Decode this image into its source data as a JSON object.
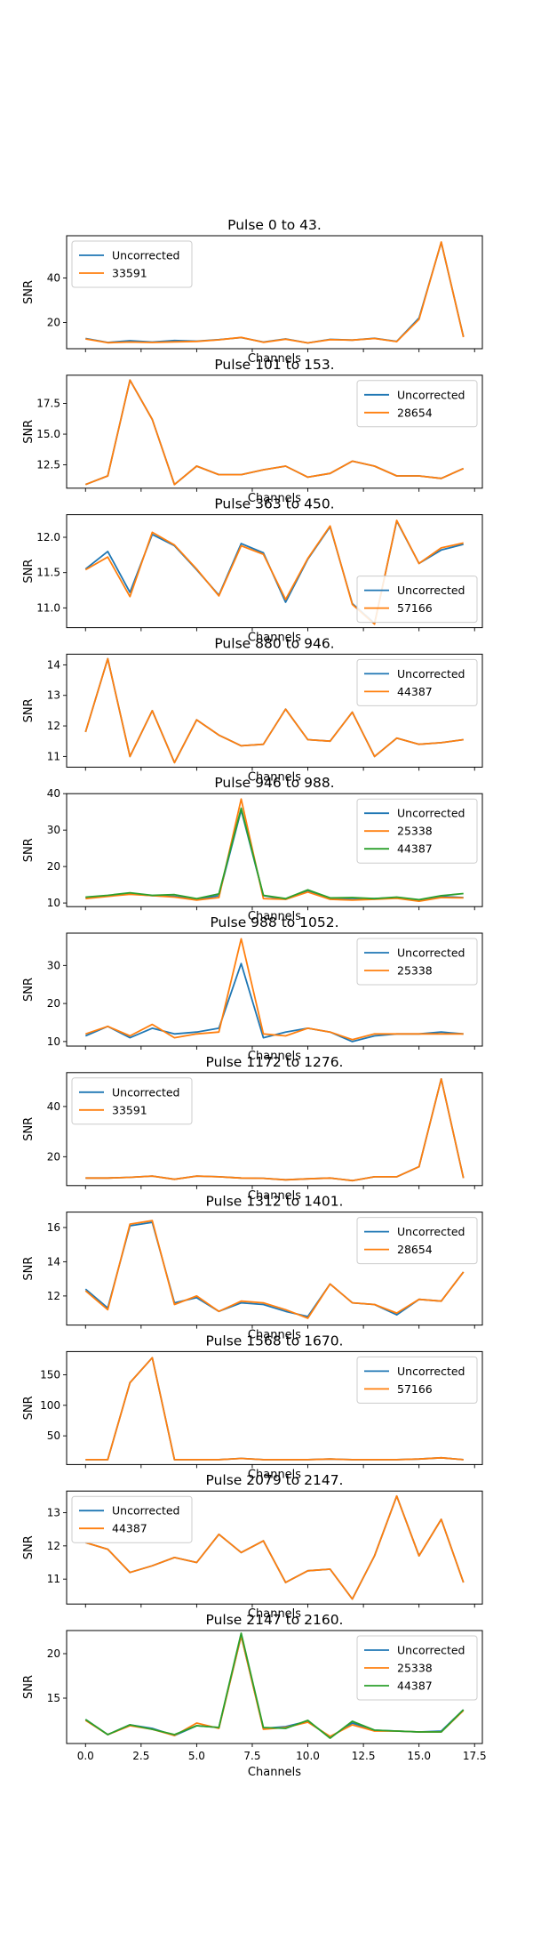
{
  "figure": {
    "name": "snr-per-channel-grid"
  },
  "colors": {
    "Uncorrected": "#1f77b4",
    "33591": "#ff7f0e",
    "28654": "#ff7f0e",
    "57166": "#ff7f0e",
    "44387": "#ff7f0e",
    "25338": "#ff7f0e",
    "44387_green": "#2ca02c"
  },
  "chart_data": [
    {
      "type": "line",
      "title": "Pulse 0 to 43.",
      "xlabel": "Channels",
      "ylabel": "SNR",
      "ylim": [
        8.2,
        59
      ],
      "yticks": [
        "20",
        "40"
      ],
      "yticks_values": [
        20,
        40
      ],
      "legend": "top-left",
      "x": [
        0,
        1,
        2,
        3,
        4,
        5,
        6,
        7,
        8,
        9,
        10,
        11,
        12,
        13,
        14,
        15,
        16,
        17
      ],
      "series": [
        {
          "name": "Uncorrected",
          "color": "#1f77b4",
          "values": [
            12.8,
            11.0,
            11.8,
            11.2,
            11.9,
            11.6,
            12.3,
            13.2,
            11.2,
            12.6,
            10.8,
            12.4,
            12.1,
            12.9,
            11.5,
            22.0,
            56.0,
            13.6
          ]
        },
        {
          "name": "33591",
          "color": "#ff7f0e",
          "values": [
            12.6,
            10.9,
            11.2,
            11.0,
            11.3,
            11.5,
            12.2,
            13.3,
            11.1,
            12.5,
            10.8,
            12.3,
            12.1,
            12.8,
            11.4,
            21.4,
            56.2,
            13.4
          ]
        }
      ]
    },
    {
      "type": "line",
      "title": "Pulse 101 to 153.",
      "xlabel": "Channels",
      "ylabel": "SNR",
      "ylim": [
        10.6,
        19.8
      ],
      "yticks": [
        "12.5",
        "15.0",
        "17.5"
      ],
      "yticks_values": [
        12.5,
        15.0,
        17.5
      ],
      "legend": "top-right",
      "x": [
        0,
        1,
        2,
        3,
        4,
        5,
        6,
        7,
        8,
        9,
        10,
        11,
        12,
        13,
        14,
        15,
        16,
        17
      ],
      "series": [
        {
          "name": "Uncorrected",
          "color": "#1f77b4",
          "values": [
            10.9,
            11.6,
            19.4,
            16.2,
            10.9,
            12.4,
            11.7,
            11.7,
            12.1,
            12.4,
            11.5,
            11.8,
            12.8,
            12.4,
            11.6,
            11.6,
            11.4,
            12.2
          ]
        },
        {
          "name": "28654",
          "color": "#ff7f0e",
          "values": [
            10.9,
            11.6,
            19.4,
            16.2,
            10.9,
            12.4,
            11.7,
            11.7,
            12.1,
            12.4,
            11.5,
            11.8,
            12.8,
            12.4,
            11.6,
            11.6,
            11.4,
            12.2
          ]
        }
      ]
    },
    {
      "type": "line",
      "title": "Pulse 363 to 450.",
      "xlabel": "Channels",
      "ylabel": "SNR",
      "ylim": [
        10.72,
        12.32
      ],
      "yticks": [
        "11.0",
        "11.5",
        "12.0"
      ],
      "yticks_values": [
        11.0,
        11.5,
        12.0
      ],
      "legend": "bottom-right",
      "x": [
        0,
        1,
        2,
        3,
        4,
        5,
        6,
        7,
        8,
        9,
        10,
        11,
        12,
        13,
        14,
        15,
        16,
        17
      ],
      "series": [
        {
          "name": "Uncorrected",
          "color": "#1f77b4",
          "values": [
            11.55,
            11.8,
            11.22,
            12.04,
            11.88,
            11.54,
            11.18,
            11.91,
            11.78,
            11.08,
            11.69,
            12.15,
            11.06,
            10.78,
            12.23,
            11.63,
            11.82,
            11.9
          ]
        },
        {
          "name": "57166",
          "color": "#ff7f0e",
          "values": [
            11.54,
            11.72,
            11.16,
            12.07,
            11.89,
            11.55,
            11.17,
            11.88,
            11.76,
            11.12,
            11.7,
            12.16,
            11.05,
            10.77,
            12.24,
            11.63,
            11.85,
            11.92
          ]
        }
      ]
    },
    {
      "type": "line",
      "title": "Pulse 880 to 946.",
      "xlabel": "Channels",
      "ylabel": "SNR",
      "ylim": [
        10.65,
        14.35
      ],
      "yticks": [
        "11",
        "12",
        "13",
        "14"
      ],
      "yticks_values": [
        11,
        12,
        13,
        14
      ],
      "legend": "top-right",
      "x": [
        0,
        1,
        2,
        3,
        4,
        5,
        6,
        7,
        8,
        9,
        10,
        11,
        12,
        13,
        14,
        15,
        16,
        17
      ],
      "series": [
        {
          "name": "Uncorrected",
          "color": "#1f77b4",
          "values": [
            11.8,
            14.2,
            11.0,
            12.5,
            10.8,
            12.2,
            11.7,
            11.35,
            11.4,
            12.55,
            11.55,
            11.5,
            12.45,
            11.0,
            11.6,
            11.4,
            11.45,
            11.55
          ]
        },
        {
          "name": "44387",
          "color": "#ff7f0e",
          "values": [
            11.8,
            14.2,
            11.0,
            12.5,
            10.8,
            12.2,
            11.7,
            11.35,
            11.4,
            12.55,
            11.55,
            11.5,
            12.45,
            11.0,
            11.6,
            11.4,
            11.45,
            11.55
          ]
        }
      ]
    },
    {
      "type": "line",
      "title": "Pulse 946 to 988.",
      "xlabel": "Channels",
      "ylabel": "SNR",
      "ylim": [
        9.0,
        40.0
      ],
      "yticks": [
        "10",
        "20",
        "30",
        "40"
      ],
      "yticks_values": [
        10,
        20,
        30,
        40
      ],
      "legend": "top-right",
      "x": [
        0,
        1,
        2,
        3,
        4,
        5,
        6,
        7,
        8,
        9,
        10,
        11,
        12,
        13,
        14,
        15,
        16,
        17
      ],
      "series": [
        {
          "name": "Uncorrected",
          "color": "#1f77b4",
          "values": [
            11.5,
            12.0,
            12.5,
            12.0,
            11.8,
            11.0,
            12.0,
            35.5,
            12.0,
            11.0,
            13.2,
            11.2,
            11.0,
            11.2,
            11.5,
            10.8,
            11.8,
            11.5
          ]
        },
        {
          "name": "25338",
          "color": "#ff7f0e",
          "values": [
            11.2,
            11.8,
            12.4,
            12.0,
            11.6,
            10.8,
            11.5,
            38.5,
            11.2,
            11.0,
            13.0,
            11.0,
            10.8,
            11.0,
            11.3,
            10.5,
            11.5,
            11.4
          ]
        },
        {
          "name": "44387",
          "color": "#2ca02c",
          "values": [
            11.6,
            12.1,
            12.8,
            12.1,
            12.3,
            11.2,
            12.5,
            36.0,
            12.1,
            11.2,
            13.6,
            11.4,
            11.5,
            11.2,
            11.6,
            10.9,
            12.0,
            12.6
          ]
        }
      ]
    },
    {
      "type": "line",
      "title": "Pulse 988 to 1052.",
      "xlabel": "Channels",
      "ylabel": "SNR",
      "ylim": [
        8.8,
        38.5
      ],
      "yticks": [
        "10",
        "20",
        "30"
      ],
      "yticks_values": [
        10,
        20,
        30
      ],
      "legend": "top-right",
      "x": [
        0,
        1,
        2,
        3,
        4,
        5,
        6,
        7,
        8,
        9,
        10,
        11,
        12,
        13,
        14,
        15,
        16,
        17
      ],
      "series": [
        {
          "name": "Uncorrected",
          "color": "#1f77b4",
          "values": [
            11.5,
            14.0,
            11.0,
            13.5,
            12.0,
            12.5,
            13.5,
            30.5,
            11.0,
            12.5,
            13.5,
            12.5,
            10.0,
            11.5,
            12.0,
            12.0,
            12.5,
            12.0
          ]
        },
        {
          "name": "25338",
          "color": "#ff7f0e",
          "values": [
            12.0,
            14.0,
            11.5,
            14.5,
            11.0,
            12.0,
            12.5,
            37.0,
            12.0,
            11.5,
            13.5,
            12.5,
            10.5,
            12.0,
            12.0,
            12.0,
            12.0,
            12.0
          ]
        }
      ]
    },
    {
      "type": "line",
      "title": "Pulse 1172 to 1276.",
      "xlabel": "Channels",
      "ylabel": "SNR",
      "ylim": [
        8.5,
        53.5
      ],
      "yticks": [
        "20",
        "40"
      ],
      "yticks_values": [
        20,
        40
      ],
      "legend": "top-left",
      "x": [
        0,
        1,
        2,
        3,
        4,
        5,
        6,
        7,
        8,
        9,
        10,
        11,
        12,
        13,
        14,
        15,
        16,
        17
      ],
      "series": [
        {
          "name": "Uncorrected",
          "color": "#1f77b4",
          "values": [
            11.5,
            11.5,
            11.8,
            12.3,
            11.0,
            12.3,
            12.0,
            11.5,
            11.4,
            10.8,
            11.2,
            11.5,
            10.5,
            12.0,
            12.0,
            16.0,
            51.0,
            11.5
          ]
        },
        {
          "name": "33591",
          "color": "#ff7f0e",
          "values": [
            11.5,
            11.5,
            11.8,
            12.3,
            11.0,
            12.3,
            12.0,
            11.5,
            11.4,
            10.8,
            11.2,
            11.5,
            10.5,
            12.0,
            12.0,
            16.0,
            51.0,
            11.5
          ]
        }
      ]
    },
    {
      "type": "line",
      "title": "Pulse 1312 to 1401.",
      "xlabel": "Channels",
      "ylabel": "SNR",
      "ylim": [
        10.3,
        16.9
      ],
      "yticks": [
        "12",
        "14",
        "16"
      ],
      "yticks_values": [
        12,
        14,
        16
      ],
      "legend": "top-right",
      "x": [
        0,
        1,
        2,
        3,
        4,
        5,
        6,
        7,
        8,
        9,
        10,
        11,
        12,
        13,
        14,
        15,
        16,
        17
      ],
      "series": [
        {
          "name": "Uncorrected",
          "color": "#1f77b4",
          "values": [
            12.4,
            11.3,
            16.1,
            16.3,
            11.6,
            11.9,
            11.1,
            11.6,
            11.5,
            11.1,
            10.8,
            12.7,
            11.6,
            11.5,
            10.9,
            11.8,
            11.7,
            13.4
          ]
        },
        {
          "name": "28654",
          "color": "#ff7f0e",
          "values": [
            12.3,
            11.2,
            16.2,
            16.4,
            11.5,
            12.0,
            11.1,
            11.7,
            11.6,
            11.2,
            10.7,
            12.7,
            11.6,
            11.5,
            11.0,
            11.8,
            11.7,
            13.4
          ]
        }
      ]
    },
    {
      "type": "line",
      "title": "Pulse 1568 to 1670.",
      "xlabel": "Channels",
      "ylabel": "SNR",
      "ylim": [
        3,
        188
      ],
      "yticks": [
        "50",
        "100",
        "150"
      ],
      "yticks_values": [
        50,
        100,
        150
      ],
      "legend": "top-right",
      "x": [
        0,
        1,
        2,
        3,
        4,
        5,
        6,
        7,
        8,
        9,
        10,
        11,
        12,
        13,
        14,
        15,
        16,
        17
      ],
      "series": [
        {
          "name": "Uncorrected",
          "color": "#1f77b4",
          "values": [
            11,
            11,
            137,
            178,
            11,
            11,
            11,
            13,
            11,
            11,
            11,
            12,
            11,
            11,
            11,
            12,
            14,
            11
          ]
        },
        {
          "name": "57166",
          "color": "#ff7f0e",
          "values": [
            11,
            11,
            137,
            178,
            11,
            11,
            11,
            13,
            11,
            11,
            11,
            12,
            11,
            11,
            11,
            12,
            14,
            11
          ]
        }
      ]
    },
    {
      "type": "line",
      "title": "Pulse 2079 to 2147.",
      "xlabel": "Channels",
      "ylabel": "SNR",
      "ylim": [
        10.25,
        13.65
      ],
      "yticks": [
        "11",
        "12",
        "13"
      ],
      "yticks_values": [
        11,
        12,
        13
      ],
      "legend": "top-left",
      "x": [
        0,
        1,
        2,
        3,
        4,
        5,
        6,
        7,
        8,
        9,
        10,
        11,
        12,
        13,
        14,
        15,
        16,
        17
      ],
      "series": [
        {
          "name": "Uncorrected",
          "color": "#1f77b4",
          "values": [
            12.1,
            11.9,
            11.2,
            11.4,
            11.65,
            11.5,
            12.35,
            11.8,
            12.15,
            10.9,
            11.25,
            11.3,
            10.4,
            11.7,
            13.5,
            11.7,
            12.8,
            10.9
          ]
        },
        {
          "name": "44387",
          "color": "#ff7f0e",
          "values": [
            12.1,
            11.9,
            11.2,
            11.4,
            11.65,
            11.5,
            12.35,
            11.8,
            12.15,
            10.9,
            11.25,
            11.3,
            10.4,
            11.7,
            13.5,
            11.7,
            12.8,
            10.9
          ]
        }
      ]
    },
    {
      "type": "line",
      "title": "Pulse 2147 to 2160.",
      "xlabel": "Channels",
      "ylabel": "SNR",
      "ylim": [
        9.9,
        22.6
      ],
      "yticks": [
        "15",
        "20"
      ],
      "yticks_values": [
        15,
        20
      ],
      "legend": "top-right",
      "x": [
        0,
        1,
        2,
        3,
        4,
        5,
        6,
        7,
        8,
        9,
        10,
        11,
        12,
        13,
        14,
        15,
        16,
        17
      ],
      "xticks": [
        "0.0",
        "2.5",
        "5.0",
        "7.5",
        "10.0",
        "12.5",
        "15.0",
        "17.5"
      ],
      "xticks_values": [
        0,
        2.5,
        5,
        7.5,
        10,
        12.5,
        15,
        17.5
      ],
      "series": [
        {
          "name": "Uncorrected",
          "color": "#1f77b4",
          "values": [
            12.6,
            10.9,
            12.0,
            11.6,
            10.8,
            11.9,
            11.7,
            22.0,
            11.6,
            11.8,
            12.4,
            10.6,
            12.2,
            11.4,
            11.3,
            11.2,
            11.3,
            13.7
          ]
        },
        {
          "name": "25338",
          "color": "#ff7f0e",
          "values": [
            12.5,
            10.9,
            11.9,
            11.5,
            10.8,
            12.2,
            11.6,
            22.0,
            11.5,
            11.7,
            12.3,
            10.7,
            12.0,
            11.3,
            11.3,
            11.2,
            11.2,
            13.6
          ]
        },
        {
          "name": "44387",
          "color": "#2ca02c",
          "values": [
            12.6,
            10.9,
            12.0,
            11.5,
            10.9,
            11.9,
            11.7,
            22.3,
            11.7,
            11.6,
            12.5,
            10.5,
            12.4,
            11.4,
            11.3,
            11.2,
            11.2,
            13.7
          ]
        }
      ]
    }
  ]
}
